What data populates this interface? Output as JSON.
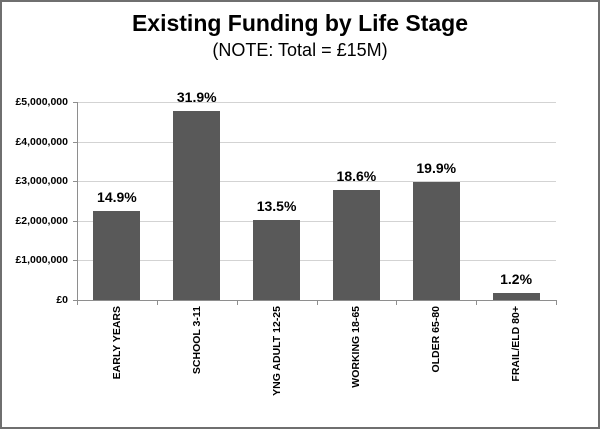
{
  "chart_data": {
    "type": "bar",
    "title": "Existing Funding by Life Stage",
    "subtitle": "(NOTE: Total = £15M)",
    "categories": [
      "EARLY YEARS",
      "SCHOOL 3-11",
      "YNG ADULT 12-25",
      "WORKING 18-65",
      "OLDER 65-80",
      "FRAIL/ELD 80+"
    ],
    "values": [
      2235000,
      4785000,
      2025000,
      2790000,
      2985000,
      180000
    ],
    "value_labels": [
      "14.9%",
      "31.9%",
      "13.5%",
      "18.6%",
      "19.9%",
      "1.2%"
    ],
    "total_note_value": "£15M",
    "ylim": [
      0,
      5000000
    ],
    "y_tick_labels": [
      "£0",
      "£1,000,000",
      "£2,000,000",
      "£3,000,000",
      "£4,000,000",
      "£5,000,000"
    ],
    "xlabel": "",
    "ylabel": "",
    "grid": true,
    "legend": "none",
    "colors": {
      "bar": "#595959",
      "gridline": "#d3d3d3",
      "axis": "#8e8e8e",
      "text": "#000000",
      "frame_border": "#6f6f6f",
      "background": "#ffffff"
    }
  }
}
